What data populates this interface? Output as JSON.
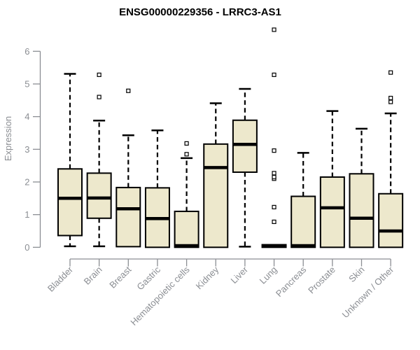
{
  "chart_data": {
    "type": "boxplot",
    "title": "ENSG00000229356 - LRRC3-AS1",
    "xlabel": "",
    "ylabel": "Expression",
    "ylim": [
      0,
      6
    ],
    "yticks": [
      0,
      1,
      2,
      3,
      4,
      5,
      6
    ],
    "grid": false,
    "legend": "none",
    "categories": [
      "Bladder",
      "Brain",
      "Breast",
      "Gastric",
      "Hematopoietic cells",
      "Kidney",
      "Liver",
      "Lung",
      "Pancreas",
      "Prostate",
      "Skin",
      "Unknown / Other"
    ],
    "series": [
      {
        "name": "Bladder",
        "whisker_low": 0.03,
        "q1": 0.36,
        "median": 1.5,
        "q3": 2.4,
        "whisker_high": 5.31,
        "outliers": []
      },
      {
        "name": "Brain",
        "whisker_low": 0.03,
        "q1": 0.89,
        "median": 1.51,
        "q3": 2.27,
        "whisker_high": 3.88,
        "outliers": [
          4.6,
          5.28
        ]
      },
      {
        "name": "Breast",
        "whisker_low": 0.02,
        "q1": 0.02,
        "median": 1.18,
        "q3": 1.83,
        "whisker_high": 3.43,
        "outliers": [
          4.79
        ]
      },
      {
        "name": "Gastric",
        "whisker_low": 0.0,
        "q1": 0.0,
        "median": 0.88,
        "q3": 1.82,
        "whisker_high": 3.58,
        "outliers": []
      },
      {
        "name": "Hematopoietic cells",
        "whisker_low": 0.0,
        "q1": 0.0,
        "median": 0.05,
        "q3": 1.1,
        "whisker_high": 2.73,
        "outliers": [
          2.85,
          3.18
        ]
      },
      {
        "name": "Kidney",
        "whisker_low": 0.0,
        "q1": 0.0,
        "median": 2.44,
        "q3": 3.16,
        "whisker_high": 4.41,
        "outliers": []
      },
      {
        "name": "Liver",
        "whisker_low": 0.02,
        "q1": 2.3,
        "median": 3.15,
        "q3": 3.89,
        "whisker_high": 4.85,
        "outliers": []
      },
      {
        "name": "Lung",
        "whisker_low": 0.0,
        "q1": 0.0,
        "median": 0.04,
        "q3": 0.08,
        "whisker_high": 0.08,
        "outliers": [
          0.78,
          1.23,
          2.1,
          2.15,
          2.27,
          2.96,
          5.28,
          6.66
        ]
      },
      {
        "name": "Pancreas",
        "whisker_low": 0.0,
        "q1": 0.0,
        "median": 0.05,
        "q3": 1.56,
        "whisker_high": 2.89,
        "outliers": []
      },
      {
        "name": "Prostate",
        "whisker_low": 0.0,
        "q1": 0.0,
        "median": 1.21,
        "q3": 2.15,
        "whisker_high": 4.17,
        "outliers": []
      },
      {
        "name": "Skin",
        "whisker_low": 0.0,
        "q1": 0.0,
        "median": 0.89,
        "q3": 2.25,
        "whisker_high": 3.63,
        "outliers": []
      },
      {
        "name": "Unknown / Other",
        "whisker_low": 0.0,
        "q1": 0.0,
        "median": 0.5,
        "q3": 1.64,
        "whisker_high": 4.1,
        "outliers": [
          4.45,
          4.57,
          5.35
        ]
      }
    ],
    "colors": {
      "box_fill": "#EDE8CC",
      "box_border": "#000000",
      "median": "#000000",
      "whisker": "#000000",
      "outlier_fill": "#ffffff",
      "axis": "#8b8e93",
      "axis_text": "#8b8e93",
      "title": "#000000",
      "background": "#ffffff"
    }
  }
}
